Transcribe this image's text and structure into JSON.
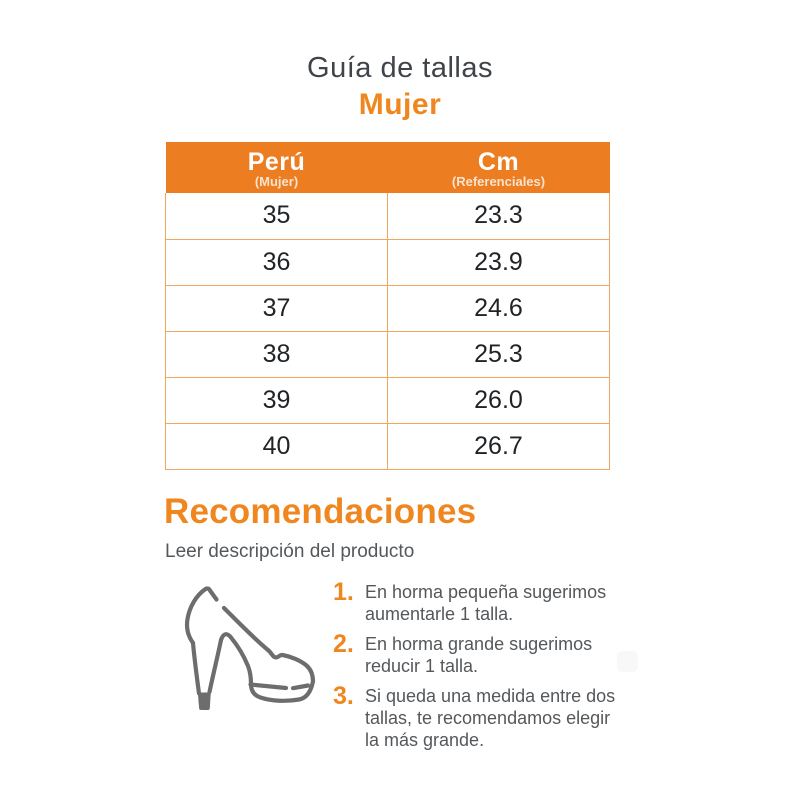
{
  "header": {
    "title": "Guía de tallas",
    "subtitle": "Mujer"
  },
  "table": {
    "columns": [
      {
        "label": "Perú",
        "sublabel": "(Mujer)"
      },
      {
        "label": "Cm",
        "sublabel": "(Referenciales)"
      }
    ],
    "rows": [
      [
        "35",
        "23.3"
      ],
      [
        "36",
        "23.9"
      ],
      [
        "37",
        "24.6"
      ],
      [
        "38",
        "25.3"
      ],
      [
        "39",
        "26.0"
      ],
      [
        "40",
        "26.7"
      ]
    ]
  },
  "recommendations": {
    "title": "Recomendaciones",
    "subtitle": "Leer descripción del producto",
    "items": [
      {
        "number": "1.",
        "text": "En horma pequeña sugerimos aumentarle 1 talla."
      },
      {
        "number": "2.",
        "text": "En horma grande sugerimos reducir 1 talla."
      },
      {
        "number": "3.",
        "text": "Si queda una medida entre dos tallas, te recomendamos elegir la más grande."
      }
    ]
  },
  "icons": {
    "shoe": "high-heel-shoe-icon"
  },
  "colors": {
    "header_orange": "#EC7D20",
    "accent_orange": "#F0861E",
    "table_border": "#F3A55F",
    "title_dark": "#3E4449",
    "cell_dark": "#212427",
    "body_gray": "#54585B",
    "shoe_gray": "#6D6D6D"
  }
}
